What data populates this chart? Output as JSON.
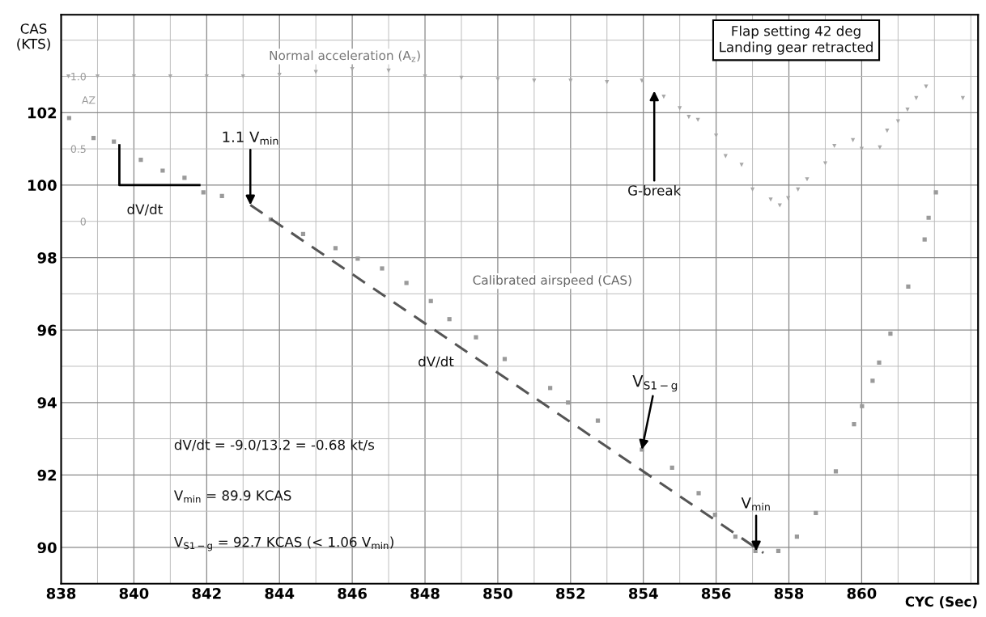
{
  "chart_data": {
    "type": "scatter",
    "xlabel": "CYC (Sec)",
    "ylabel": "CAS\n(KTS)",
    "y2label": "AZ",
    "xlim": [
      838,
      863.2
    ],
    "ylim": [
      89,
      104.7
    ],
    "y2lim": [
      -2.5,
      1.425
    ],
    "xticks": [
      838,
      840,
      842,
      844,
      846,
      848,
      850,
      852,
      854,
      856,
      858,
      860
    ],
    "yticks": [
      90,
      92,
      94,
      96,
      98,
      100,
      102
    ],
    "y2ticks": [
      {
        "value": 1.0,
        "label": "1.0"
      },
      0.5,
      0
    ],
    "grid": true,
    "legend": false,
    "series": [
      {
        "color": "#9a9a9a",
        "marker": "square",
        "x": [
          838.22,
          838.89,
          839.45,
          840.19,
          840.79,
          841.39,
          841.91,
          842.42,
          843.76,
          844.65,
          845.54,
          846.15,
          846.82,
          847.49,
          848.16,
          848.67,
          849.4,
          850.19,
          851.44,
          851.93,
          852.75,
          853.96,
          854.79,
          855.52,
          855.97,
          856.53,
          857.08,
          857.71,
          858.22,
          858.74,
          859.29,
          859.79,
          860.01,
          860.3,
          860.48,
          860.79,
          861.28,
          861.73,
          861.84,
          862.04
        ],
        "values": [
          101.85,
          101.3,
          101.2,
          100.7,
          100.4,
          100.2,
          99.8,
          99.7,
          99.05,
          98.65,
          98.26,
          97.97,
          97.7,
          97.3,
          96.8,
          96.3,
          95.8,
          95.2,
          94.4,
          94.0,
          93.5,
          92.7,
          92.2,
          91.5,
          90.9,
          90.3,
          89.9,
          89.9,
          90.3,
          90.95,
          92.1,
          93.4,
          93.9,
          94.6,
          95.1,
          95.9,
          97.2,
          98.5,
          99.1,
          99.8
        ]
      },
      {
        "axis": "y2",
        "color": "#a8a8a8",
        "marker": "triangle",
        "x": [
          838.2,
          839,
          840,
          841,
          842,
          843,
          844,
          845,
          846,
          847,
          848,
          849,
          850,
          851,
          852,
          853,
          853.96,
          854.56,
          855.0,
          855.25,
          855.5,
          856.0,
          856.26,
          856.7,
          857.0,
          857.5,
          857.75,
          857.98,
          858.25,
          858.5,
          859.0,
          859.25,
          859.76,
          860.0,
          860.5,
          860.7,
          861.0,
          861.26,
          861.5,
          861.77,
          862.78
        ],
        "values": [
          1.0,
          1.0,
          1.0,
          1.0,
          1.0,
          1.0,
          1.01,
          1.03,
          1.05,
          1.04,
          1.0,
          0.99,
          0.98,
          0.97,
          0.97,
          0.96,
          0.97,
          0.86,
          0.78,
          0.72,
          0.7,
          0.59,
          0.45,
          0.39,
          0.22,
          0.15,
          0.11,
          0.16,
          0.22,
          0.29,
          0.4,
          0.52,
          0.56,
          0.5,
          0.51,
          0.625,
          0.69,
          0.77,
          0.85,
          0.93,
          0.85
        ]
      },
      {
        "type": "line",
        "color": "#555555",
        "line_style": "dashed",
        "x": [
          843.2,
          857.3
        ],
        "values": [
          99.45,
          89.85
        ]
      }
    ],
    "annotations": [
      {
        "text": "1.1 V$_{min}$",
        "x": 843.2,
        "y": 99.45
      },
      "G-break",
      {
        "text": "V$_{S1−g}$",
        "x": 853.96,
        "y": 92.7
      },
      {
        "text": "V$_{min}$",
        "x": 857.1,
        "y": 89.9
      },
      "Normal acceleration (A$_{z}$)",
      "Calibrated airspeed (CAS)",
      "dV/dt",
      "dV/dt",
      "dV/dt = -9.0/13.2 = -0.68 kt/s",
      "V$_{min}$ = 89.9 KCAS",
      "V$_{S1−g}$ = 92.7 KCAS (< 1.06 V$_{min}$)",
      "Flap setting 42 deg\nLanding gear retracted"
    ]
  }
}
